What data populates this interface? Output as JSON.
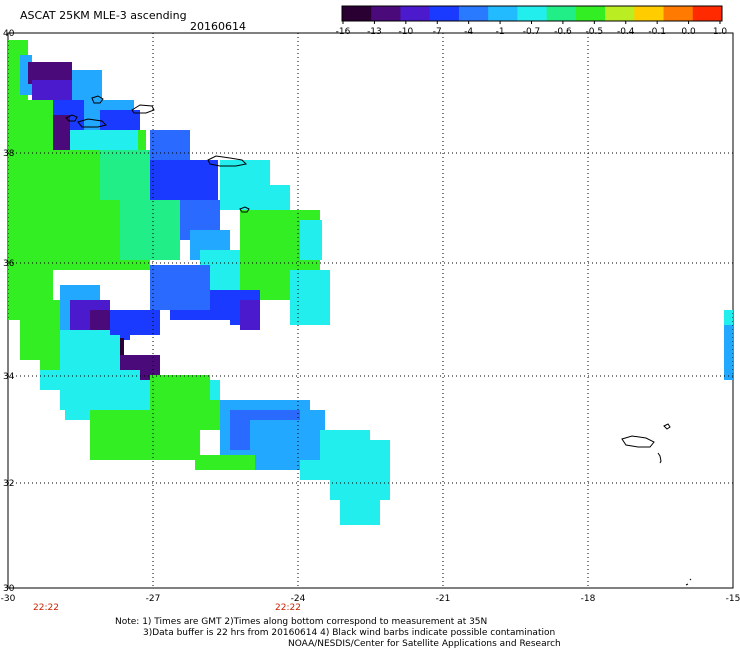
{
  "header": {
    "title": "ASCAT 25KM MLE-3 ascending",
    "date": "20160614"
  },
  "colorbar": {
    "labels": [
      "-16",
      "-13",
      "-10",
      "-7",
      "-4",
      "-1",
      "-0.7",
      "-0.6",
      "-0.5",
      "-0.4",
      "-0.1",
      "0.0",
      "1.0"
    ],
    "colors": [
      "#2a0033",
      "#4a0a7a",
      "#4a1acc",
      "#1a3aff",
      "#2a7aff",
      "#22bbff",
      "#22eeee",
      "#22ee88",
      "#33ee22",
      "#bbee22",
      "#ffcc00",
      "#ff7a00",
      "#ff2a00"
    ]
  },
  "map": {
    "lon_labels": [
      "-30",
      "-27",
      "-24",
      "-21",
      "-18",
      "-15"
    ],
    "lat_labels": [
      "40",
      "38",
      "36",
      "34",
      "32",
      "30"
    ],
    "time_labels": [
      "22:22",
      "22:22"
    ]
  },
  "footer": {
    "line1": "Note: 1) Times are GMT 2)Times along bottom correspond to measurement at 35N",
    "line2": "3)Data buffer is 22 hrs from 20160614 4) Black wind barbs indicate possible contamination",
    "line3": "NOAA/NESDIS/Center for Satellite Applications and Research"
  }
}
